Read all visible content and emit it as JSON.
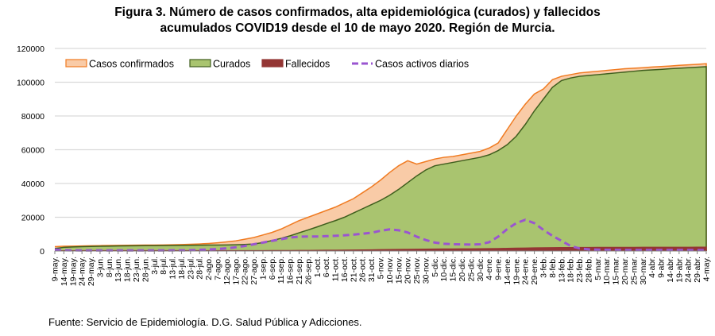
{
  "chart_data": {
    "type": "area",
    "title": "Figura 3. Número de casos confirmados, alta epidemiológica (curados) y fallecidos acumulados COVID19 desde el 10 de mayo 2020. Región de Murcia.",
    "title_lines": [
      "Figura 3. Número de casos confirmados, alta epidemiológica (curados) y fallecidos",
      "acumulados COVID19 desde el 10 de mayo 2020. Región de Murcia."
    ],
    "xlabel": "",
    "ylabel": "",
    "ylim": [
      0,
      120000
    ],
    "yticks": [
      0,
      20000,
      40000,
      60000,
      80000,
      100000,
      120000
    ],
    "ytick_labels": [
      "0",
      "20000",
      "40000",
      "60000",
      "80000",
      "100000",
      "120000"
    ],
    "grid": true,
    "legend_position": "top-left",
    "categories": [
      "9-may.",
      "14-may.",
      "19-may.",
      "24-may.",
      "29-may.",
      "3-jun.",
      "8-jun.",
      "13-jun.",
      "18-jun.",
      "23-jun.",
      "28-jun.",
      "3-jul.",
      "8-jul.",
      "13-jul.",
      "18-jul.",
      "23-jul.",
      "28-jul.",
      "2-ago.",
      "7-ago.",
      "12-ago.",
      "17-ago.",
      "22-ago.",
      "27-ago.",
      "1-sep.",
      "6-sep.",
      "11-sep.",
      "16-sep.",
      "21-sep.",
      "26-sep.",
      "1-oct.",
      "6-oct.",
      "11-oct.",
      "16-oct.",
      "21-oct.",
      "26-oct.",
      "31-oct.",
      "5-nov.",
      "10-nov.",
      "15-nov.",
      "20-nov.",
      "25-nov.",
      "30-nov.",
      "5-dic.",
      "10-dic.",
      "15-dic.",
      "20-dic.",
      "25-dic.",
      "30-dic.",
      "4-ene.",
      "9-ene.",
      "14-ene.",
      "19-ene.",
      "24-ene.",
      "29-ene.",
      "3-feb.",
      "8-feb.",
      "13-feb.",
      "18-feb.",
      "23-feb.",
      "28-feb.",
      "5-mar.",
      "10-mar.",
      "15-mar.",
      "20-mar.",
      "25-mar.",
      "30-mar.",
      "4-abr.",
      "9-abr.",
      "14-abr.",
      "19-abr.",
      "24-abr.",
      "29-abr.",
      "4-may."
    ],
    "series": [
      {
        "name": "Casos confirmados",
        "type": "area",
        "fill": "#F9CBA7",
        "stroke": "#F07B22",
        "values": [
          2600,
          2800,
          2900,
          3000,
          3100,
          3200,
          3300,
          3350,
          3400,
          3450,
          3500,
          3550,
          3600,
          3700,
          3800,
          4000,
          4200,
          4500,
          4900,
          5400,
          6000,
          7000,
          8000,
          9500,
          11000,
          13000,
          15500,
          18000,
          20000,
          22000,
          24000,
          26000,
          28500,
          31000,
          34500,
          38000,
          42000,
          46500,
          50500,
          53500,
          51500,
          53000,
          54500,
          55500,
          56000,
          57000,
          58000,
          59000,
          61000,
          64000,
          72000,
          80000,
          87000,
          93000,
          96000,
          101500,
          103500,
          104500,
          105500,
          106000,
          106500,
          107000,
          107500,
          108000,
          108300,
          108600,
          109000,
          109300,
          109600,
          110000,
          110300,
          110600,
          111000
        ]
      },
      {
        "name": "Curados",
        "type": "area",
        "fill": "#A9C46F",
        "stroke": "#3F5E1E",
        "values": [
          1500,
          2200,
          2400,
          2600,
          2700,
          2800,
          2900,
          3000,
          3050,
          3100,
          3150,
          3200,
          3250,
          3300,
          3350,
          3400,
          3450,
          3500,
          3550,
          3600,
          3700,
          3900,
          4200,
          5000,
          6200,
          7500,
          9000,
          10800,
          12500,
          14300,
          16200,
          18000,
          20000,
          22500,
          25000,
          27500,
          30000,
          33000,
          36500,
          40500,
          44500,
          48000,
          50500,
          51500,
          52500,
          53500,
          54500,
          55500,
          57000,
          59500,
          63000,
          68000,
          75000,
          83000,
          90000,
          97000,
          101000,
          102500,
          103500,
          104000,
          104500,
          105000,
          105500,
          106000,
          106500,
          107000,
          107300,
          107600,
          108000,
          108300,
          108600,
          108900,
          109200
        ]
      },
      {
        "name": "Fallecidos",
        "type": "area",
        "fill": "#943634",
        "stroke": "#943634",
        "values": [
          140,
          145,
          148,
          150,
          150,
          150,
          150,
          150,
          150,
          151,
          151,
          152,
          152,
          153,
          153,
          154,
          155,
          156,
          158,
          160,
          165,
          170,
          180,
          195,
          210,
          230,
          260,
          290,
          320,
          350,
          390,
          430,
          480,
          540,
          600,
          670,
          740,
          820,
          890,
          960,
          1020,
          1080,
          1120,
          1160,
          1190,
          1220,
          1260,
          1300,
          1360,
          1430,
          1520,
          1620,
          1720,
          1820,
          1900,
          1960,
          2000,
          2030,
          2060,
          2080,
          2100,
          2110,
          2120,
          2130,
          2140,
          2150,
          2160,
          2170,
          2180,
          2190,
          2200,
          2210,
          2220
        ]
      },
      {
        "name": "Casos activos diarios",
        "type": "line",
        "stroke": "#9A55D0",
        "dash": true,
        "values": [
          900,
          500,
          400,
          350,
          350,
          350,
          350,
          350,
          350,
          350,
          350,
          350,
          350,
          400,
          400,
          500,
          700,
          900,
          1200,
          1600,
          2200,
          3000,
          4000,
          5000,
          6000,
          7000,
          8000,
          8500,
          8600,
          8600,
          8800,
          9000,
          9300,
          9700,
          10200,
          10800,
          12000,
          12800,
          12300,
          11000,
          8500,
          6500,
          5000,
          4300,
          4000,
          3900,
          3800,
          4000,
          5200,
          8500,
          13000,
          16500,
          18500,
          16500,
          12500,
          9000,
          6000,
          3000,
          1500,
          1000,
          800,
          700,
          650,
          600,
          600,
          600,
          580,
          570,
          560,
          560,
          560,
          550,
          550
        ]
      }
    ]
  },
  "legend": {
    "items": [
      {
        "label": "Casos confirmados",
        "swatch": "area",
        "fill": "#F9CBA7",
        "stroke": "#F07B22"
      },
      {
        "label": "Curados",
        "swatch": "area",
        "fill": "#A9C46F",
        "stroke": "#3F5E1E"
      },
      {
        "label": "Fallecidos",
        "swatch": "area",
        "fill": "#943634",
        "stroke": "#943634"
      },
      {
        "label": "Casos activos diarios",
        "swatch": "dashed-line",
        "stroke": "#9A55D0"
      }
    ]
  },
  "source": "Fuente: Servicio de Epidemiología. D.G. Salud Pública y Adicciones."
}
